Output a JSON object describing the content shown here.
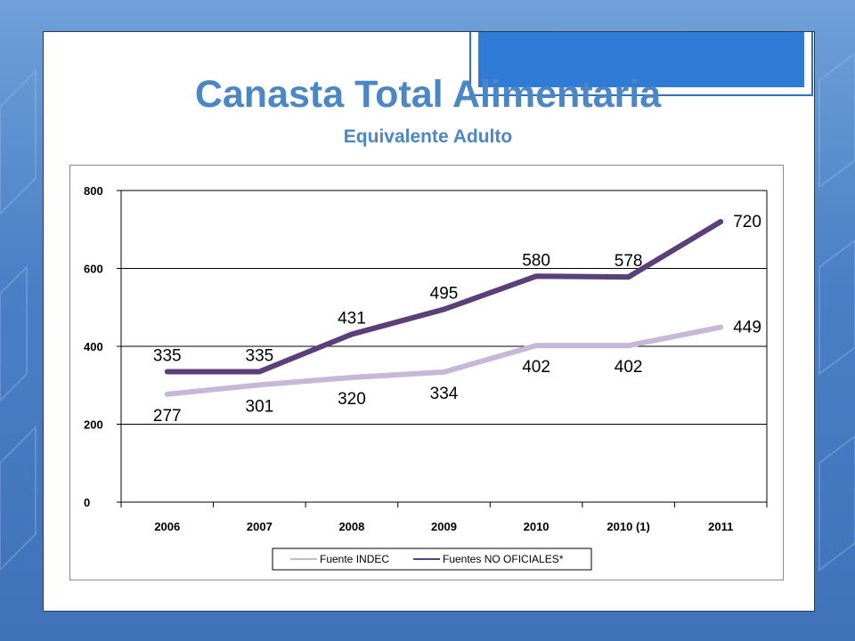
{
  "slide": {
    "title": "Canasta Total Alimentaria",
    "subtitle": "Equivalente Adulto"
  },
  "colors": {
    "background": "#4a7fc6",
    "title": "#4b87c5",
    "accent": "#2f7bd5",
    "series_indec": "#c8b8d8",
    "series_no_oficiales": "#5a3f78"
  },
  "chart_data": {
    "type": "line",
    "title": "",
    "xlabel": "",
    "ylabel": "",
    "categories": [
      "2006",
      "2007",
      "2008",
      "2009",
      "2010",
      "2010 (1)",
      "2011"
    ],
    "ylim": [
      0,
      800
    ],
    "yticks": [
      0,
      200,
      400,
      600,
      800
    ],
    "grid": true,
    "legend_position": "bottom",
    "series": [
      {
        "name": "Fuente INDEC",
        "values": [
          277,
          301,
          320,
          334,
          402,
          402,
          449
        ],
        "color": "#c8b8d8"
      },
      {
        "name": "Fuentes NO OFICIALES*",
        "values": [
          335,
          335,
          431,
          495,
          580,
          578,
          720
        ],
        "color": "#5a3f78"
      }
    ]
  }
}
